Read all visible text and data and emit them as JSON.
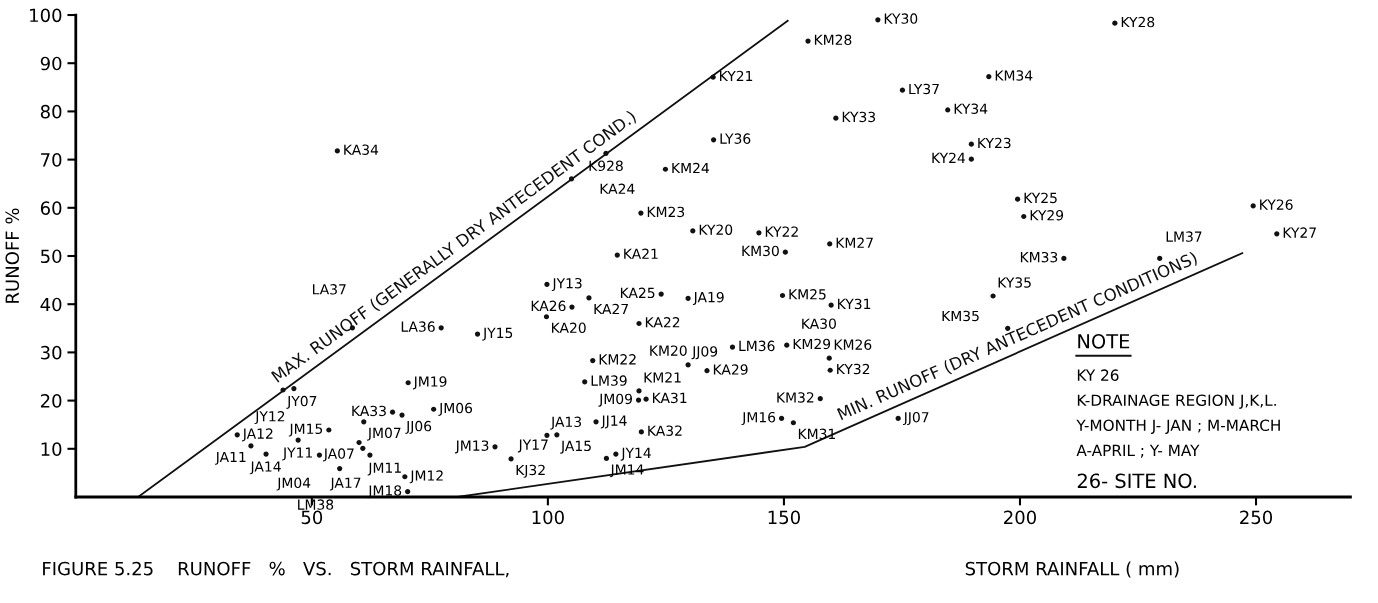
{
  "chart_data": {
    "type": "scatter",
    "title": "FIGURE 5.25    RUNOFF   %   VS.   STORM RAINFALL,",
    "xlabel": "STORM RAINFALL ( mm)",
    "ylabel": "RUNOFF %",
    "xlim": [
      0,
      270
    ],
    "ylim": [
      0,
      100
    ],
    "xticks": [
      50,
      100,
      150,
      200,
      250
    ],
    "yticks": [
      10,
      20,
      30,
      40,
      50,
      60,
      70,
      80,
      90,
      100
    ],
    "grid": false,
    "marker": "circle",
    "series": [
      {
        "color": "#111111",
        "x": [
          55.4,
          58.6,
          77.4,
          43.9,
          46.2,
          70.4,
          75.8,
          67.1,
          69.1,
          61.0,
          53.6,
          47.1,
          34.2,
          37.1,
          40.3,
          60.0,
          60.8,
          62.3,
          51.6,
          55.9,
          69.7,
          70.3,
          169.9,
          155.1,
          135.0,
          161.0,
          135.1,
          112.3,
          124.9,
          105.0,
          119.7,
          130.7,
          144.7,
          159.7,
          150.3,
          114.7,
          99.8,
          124.0,
          149.7,
          108.7,
          129.7,
          160.0,
          105.1,
          99.7,
          119.3,
          85.1,
          139.1,
          150.6,
          159.6,
          159.8,
          109.5,
          129.7,
          133.7,
          107.8,
          119.3,
          119.2,
          120.8,
          157.7,
          110.2,
          99.8,
          101.9,
          119.8,
          149.5,
          152.0,
          88.8,
          92.2,
          112.4,
          114.4,
          174.2,
          220.1,
          175.1,
          193.4,
          184.7,
          189.7,
          189.7,
          199.5,
          200.8,
          249.4,
          254.4,
          209.3,
          229.6,
          194.3,
          197.4
        ],
        "values": [
          71.8,
          35.1,
          35.1,
          22.2,
          22.5,
          23.7,
          18.2,
          17.6,
          17.0,
          15.6,
          13.9,
          11.8,
          12.9,
          10.6,
          8.9,
          11.3,
          10.1,
          8.7,
          8.7,
          5.9,
          4.2,
          1.1,
          99.0,
          94.6,
          87.1,
          78.6,
          74.1,
          71.3,
          68.0,
          66.0,
          58.9,
          55.2,
          54.8,
          52.5,
          50.8,
          50.2,
          44.1,
          42.1,
          41.8,
          41.3,
          41.2,
          39.8,
          39.4,
          37.4,
          36.0,
          33.8,
          31.1,
          31.5,
          28.8,
          26.3,
          28.3,
          27.4,
          26.2,
          23.9,
          22.0,
          20.1,
          20.3,
          20.4,
          15.6,
          12.8,
          12.9,
          13.5,
          16.3,
          15.4,
          10.4,
          7.9,
          8.0,
          8.9,
          16.3,
          98.3,
          84.4,
          87.2,
          80.3,
          73.2,
          70.1,
          61.8,
          58.2,
          60.4,
          54.6,
          49.5,
          49.5,
          41.7,
          35.0
        ]
      },
      {
        "type": "line",
        "name": "MAX. RUNOFF (GENERALLY DRY ANTECEDENT COND.)",
        "color": "#111111",
        "line_style": "solid",
        "marker": "none",
        "x": [
          13.2,
          150.8
        ],
        "values": [
          0,
          98.8
        ]
      },
      {
        "type": "line",
        "name": "MIN. RUNOFF (DRY ANTECEDENT CONDITIONS)",
        "color": "#111111",
        "line_style": "solid",
        "marker": "none",
        "x": [
          80.8,
          154.4,
          247.1
        ],
        "values": [
          0,
          10.4,
          50.6
        ]
      }
    ],
    "annotations": [
      {
        "text": "KA34",
        "x": 55.4,
        "y": 71.8
      },
      {
        "text": "LA37",
        "x": 58.6,
        "y": 35.1
      },
      {
        "text": "LA36",
        "x": 77.4,
        "y": 35.1
      },
      {
        "text": "JY07",
        "x": 43.9,
        "y": 22.2
      },
      {
        "text": "JY12",
        "x": 46.2,
        "y": 22.5
      },
      {
        "text": "JM19",
        "x": 70.4,
        "y": 23.7
      },
      {
        "text": "JM06",
        "x": 75.8,
        "y": 18.2
      },
      {
        "text": "KA33",
        "x": 67.1,
        "y": 17.6
      },
      {
        "text": "JJ06",
        "x": 69.1,
        "y": 17.0
      },
      {
        "text": "JM07",
        "x": 61.0,
        "y": 15.6
      },
      {
        "text": "JM15",
        "x": 53.6,
        "y": 13.9
      },
      {
        "text": "JY11",
        "x": 47.1,
        "y": 11.8
      },
      {
        "text": "JA12",
        "x": 34.2,
        "y": 12.9
      },
      {
        "text": "JA11",
        "x": 37.1,
        "y": 10.6
      },
      {
        "text": "JA14",
        "x": 40.3,
        "y": 8.9
      },
      {
        "text": "JA07",
        "x": 60.0,
        "y": 11.3
      },
      {
        "text": "JM11",
        "x": 60.8,
        "y": 10.1
      },
      {
        "text": "JA17",
        "x": 62.3,
        "y": 8.7
      },
      {
        "text": "JM04",
        "x": 51.6,
        "y": 8.7
      },
      {
        "text": "LM38",
        "x": 55.9,
        "y": 5.9
      },
      {
        "text": "JM12",
        "x": 69.7,
        "y": 4.2
      },
      {
        "text": "JM18",
        "x": 70.3,
        "y": 1.1
      },
      {
        "text": "KY30",
        "x": 169.9,
        "y": 99.0
      },
      {
        "text": "KM28",
        "x": 155.1,
        "y": 94.6
      },
      {
        "text": "KY21",
        "x": 135.0,
        "y": 87.1
      },
      {
        "text": "KY33",
        "x": 161.0,
        "y": 78.6
      },
      {
        "text": "LY36",
        "x": 135.1,
        "y": 74.1
      },
      {
        "text": "K928",
        "x": 112.3,
        "y": 71.3
      },
      {
        "text": "KM24",
        "x": 124.9,
        "y": 68.0
      },
      {
        "text": "KA24",
        "x": 105.0,
        "y": 66.0
      },
      {
        "text": "KM23",
        "x": 119.7,
        "y": 58.9
      },
      {
        "text": "KY20",
        "x": 130.7,
        "y": 55.2
      },
      {
        "text": "KY22",
        "x": 144.7,
        "y": 54.8
      },
      {
        "text": "KM27",
        "x": 159.7,
        "y": 52.5
      },
      {
        "text": "KM30",
        "x": 150.3,
        "y": 50.8
      },
      {
        "text": "KA21",
        "x": 114.7,
        "y": 50.2
      },
      {
        "text": "JY13",
        "x": 99.8,
        "y": 44.1
      },
      {
        "text": "KA25",
        "x": 124.0,
        "y": 42.1
      },
      {
        "text": "KM25",
        "x": 149.7,
        "y": 41.8
      },
      {
        "text": "KA27",
        "x": 108.7,
        "y": 41.3
      },
      {
        "text": "JA19",
        "x": 129.7,
        "y": 41.2
      },
      {
        "text": "KY31",
        "x": 160.0,
        "y": 39.8
      },
      {
        "text": "KA26",
        "x": 105.1,
        "y": 39.4
      },
      {
        "text": "KA20",
        "x": 99.7,
        "y": 37.4
      },
      {
        "text": "KA22",
        "x": 119.3,
        "y": 36.0
      },
      {
        "text": "JY15",
        "x": 85.1,
        "y": 33.8
      },
      {
        "text": "LM36",
        "x": 139.1,
        "y": 31.1
      },
      {
        "text": "KM29",
        "x": 150.6,
        "y": 31.5
      },
      {
        "text": "KM26",
        "x": 159.6,
        "y": 28.8
      },
      {
        "text": "KY32",
        "x": 159.8,
        "y": 26.3
      },
      {
        "text": "KM22",
        "x": 109.5,
        "y": 28.3
      },
      {
        "text": "JJ09",
        "x": 129.7,
        "y": 27.4
      },
      {
        "text": "KA29",
        "x": 133.7,
        "y": 26.2
      },
      {
        "text": "LM39",
        "x": 107.8,
        "y": 23.9
      },
      {
        "text": "KM21",
        "x": 119.3,
        "y": 22.0
      },
      {
        "text": "JM09",
        "x": 119.2,
        "y": 20.1
      },
      {
        "text": "KA31",
        "x": 120.8,
        "y": 20.3
      },
      {
        "text": "KM32",
        "x": 157.7,
        "y": 20.4
      },
      {
        "text": "JJ14",
        "x": 110.2,
        "y": 15.6
      },
      {
        "text": "JA13",
        "x": 99.8,
        "y": 12.8
      },
      {
        "text": "JA15",
        "x": 101.9,
        "y": 12.9
      },
      {
        "text": "KA32",
        "x": 119.8,
        "y": 13.5
      },
      {
        "text": "JM16",
        "x": 149.5,
        "y": 16.3
      },
      {
        "text": "KM31",
        "x": 152.0,
        "y": 15.4
      },
      {
        "text": "JM13",
        "x": 88.8,
        "y": 10.4
      },
      {
        "text": "KJ32",
        "x": 92.2,
        "y": 7.9
      },
      {
        "text": "JM14",
        "x": 112.4,
        "y": 8.0
      },
      {
        "text": "JY14",
        "x": 114.4,
        "y": 8.9
      },
      {
        "text": "JJ07",
        "x": 174.2,
        "y": 16.3
      },
      {
        "text": "KY28",
        "x": 220.1,
        "y": 98.3
      },
      {
        "text": "LY37",
        "x": 175.1,
        "y": 84.4
      },
      {
        "text": "KM34",
        "x": 193.4,
        "y": 87.2
      },
      {
        "text": "KY34",
        "x": 184.7,
        "y": 80.3
      },
      {
        "text": "KY23",
        "x": 189.7,
        "y": 73.2
      },
      {
        "text": "KY24",
        "x": 189.7,
        "y": 70.1
      },
      {
        "text": "KY25",
        "x": 199.5,
        "y": 61.8
      },
      {
        "text": "KY29",
        "x": 200.8,
        "y": 58.2
      },
      {
        "text": "KY26",
        "x": 249.4,
        "y": 60.4
      },
      {
        "text": "KY27",
        "x": 254.4,
        "y": 54.6
      },
      {
        "text": "KM33",
        "x": 209.3,
        "y": 49.5
      },
      {
        "text": "LM37",
        "x": 229.6,
        "y": 49.5
      },
      {
        "text": "KY35",
        "x": 194.3,
        "y": 41.7
      },
      {
        "text": "KM35",
        "x": 197.4,
        "y": 35.0
      },
      "KA30",
      "KM20",
      "JY17",
      "NOTE",
      "KY 26",
      "K-DRAINAGE REGION J,K,L.",
      "Y-MONTH J- JAN ; M-MARCH",
      "A-APRIL ; Y- MAY",
      "26- SITE NO."
    ]
  }
}
